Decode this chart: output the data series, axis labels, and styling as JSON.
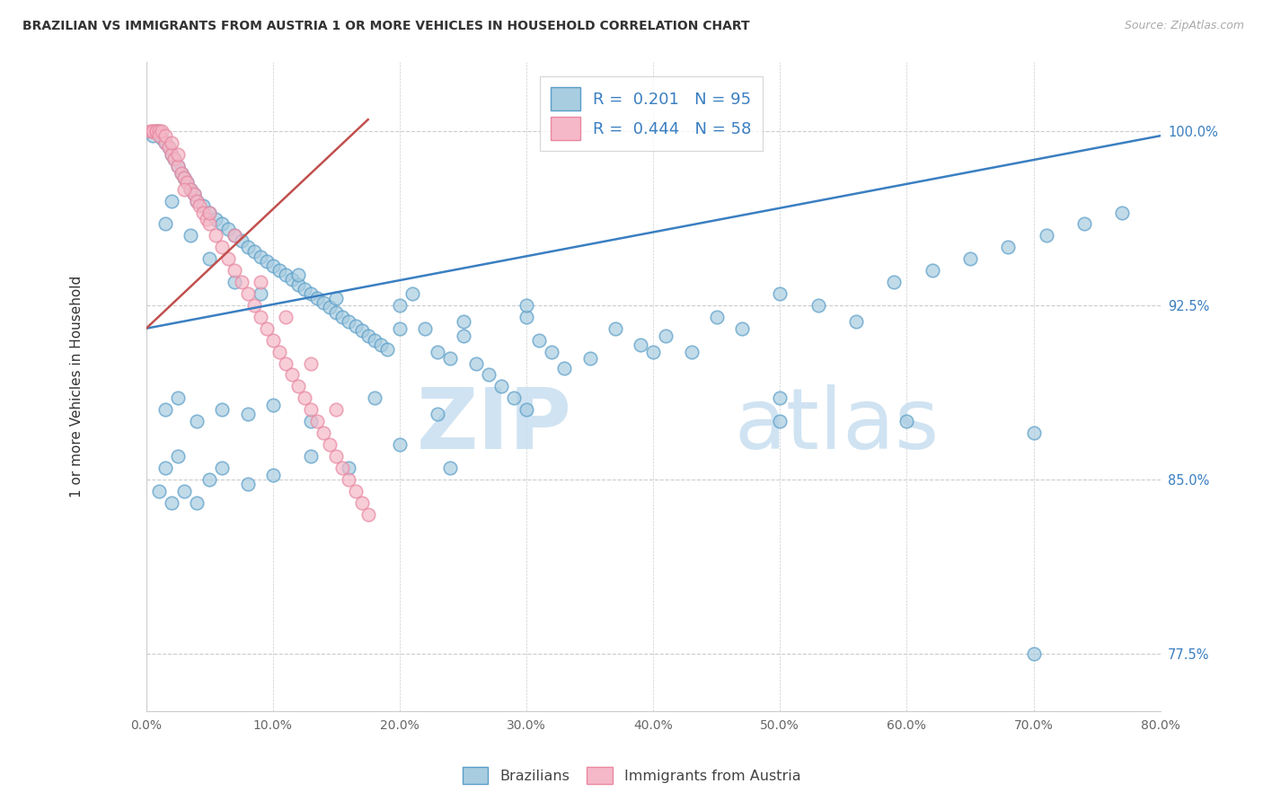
{
  "title": "BRAZILIAN VS IMMIGRANTS FROM AUSTRIA 1 OR MORE VEHICLES IN HOUSEHOLD CORRELATION CHART",
  "source": "Source: ZipAtlas.com",
  "ylabel": "1 or more Vehicles in Household",
  "xlim": [
    0.0,
    80.0
  ],
  "ylim": [
    75.0,
    103.0
  ],
  "yticks": [
    77.5,
    85.0,
    92.5,
    100.0
  ],
  "xticks": [
    0.0,
    10.0,
    20.0,
    30.0,
    40.0,
    50.0,
    60.0,
    70.0,
    80.0
  ],
  "watermark_zip": "ZIP",
  "watermark_atlas": "atlas",
  "legend_blue_r": "0.201",
  "legend_blue_n": "95",
  "legend_pink_r": "0.444",
  "legend_pink_n": "58",
  "legend_label_blue": "Brazilians",
  "legend_label_pink": "Immigrants from Austria",
  "blue_color": "#a8cce0",
  "pink_color": "#f5b8c8",
  "blue_edge_color": "#5a9ec8",
  "pink_edge_color": "#e888a0",
  "blue_line_color": "#3a7fc1",
  "pink_line_color": "#c0504d",
  "rn_value_color": "#3a7fc1",
  "blue_scatter_x": [
    0.5,
    0.8,
    1.0,
    1.2,
    1.5,
    1.8,
    2.0,
    2.2,
    2.5,
    2.8,
    3.0,
    3.2,
    3.5,
    3.8,
    4.0,
    4.5,
    5.0,
    5.5,
    6.0,
    6.5,
    7.0,
    7.5,
    8.0,
    8.5,
    9.0,
    9.5,
    10.0,
    10.5,
    11.0,
    11.5,
    12.0,
    12.5,
    13.0,
    13.5,
    14.0,
    14.5,
    15.0,
    15.5,
    16.0,
    16.5,
    17.0,
    17.5,
    18.0,
    18.5,
    19.0,
    20.0,
    21.0,
    22.0,
    23.0,
    24.0,
    25.0,
    26.0,
    27.0,
    28.0,
    29.0,
    30.0,
    31.0,
    32.0,
    33.0,
    35.0,
    37.0,
    39.0,
    41.0,
    43.0,
    45.0,
    47.0,
    50.0,
    53.0,
    56.0,
    59.0,
    62.0,
    65.0,
    68.0,
    71.0,
    74.0,
    77.0,
    1.5,
    2.0,
    3.5,
    5.0,
    7.0,
    9.0,
    12.0,
    15.0,
    20.0,
    25.0,
    30.0,
    40.0,
    50.0,
    60.0,
    70.0
  ],
  "blue_scatter_y": [
    99.8,
    100.0,
    100.0,
    99.7,
    99.5,
    99.3,
    99.0,
    98.8,
    98.5,
    98.2,
    98.0,
    97.8,
    97.5,
    97.3,
    97.0,
    96.8,
    96.5,
    96.2,
    96.0,
    95.8,
    95.5,
    95.3,
    95.0,
    94.8,
    94.6,
    94.4,
    94.2,
    94.0,
    93.8,
    93.6,
    93.4,
    93.2,
    93.0,
    92.8,
    92.6,
    92.4,
    92.2,
    92.0,
    91.8,
    91.6,
    91.4,
    91.2,
    91.0,
    90.8,
    90.6,
    92.5,
    93.0,
    91.5,
    90.5,
    90.2,
    91.8,
    90.0,
    89.5,
    89.0,
    88.5,
    92.0,
    91.0,
    90.5,
    89.8,
    90.2,
    91.5,
    90.8,
    91.2,
    90.5,
    92.0,
    91.5,
    93.0,
    92.5,
    91.8,
    93.5,
    94.0,
    94.5,
    95.0,
    95.5,
    96.0,
    96.5,
    96.0,
    97.0,
    95.5,
    94.5,
    93.5,
    93.0,
    93.8,
    92.8,
    91.5,
    91.2,
    92.5,
    90.5,
    88.5,
    87.5,
    77.5
  ],
  "blue_scatter_x2": [
    1.0,
    1.5,
    2.0,
    2.5,
    3.0,
    4.0,
    5.0,
    6.0,
    8.0,
    10.0,
    13.0,
    16.0,
    20.0,
    24.0
  ],
  "blue_scatter_y2": [
    84.5,
    85.5,
    84.0,
    86.0,
    84.5,
    84.0,
    85.0,
    85.5,
    84.8,
    85.2,
    86.0,
    85.5,
    86.5,
    85.5
  ],
  "blue_scatter_x3": [
    1.5,
    2.5,
    4.0,
    6.0,
    8.0,
    10.0,
    13.0,
    18.0,
    23.0,
    30.0,
    50.0,
    70.0
  ],
  "blue_scatter_y3": [
    88.0,
    88.5,
    87.5,
    88.0,
    87.8,
    88.2,
    87.5,
    88.5,
    87.8,
    88.0,
    87.5,
    87.0
  ],
  "pink_scatter_x": [
    0.3,
    0.5,
    0.5,
    0.8,
    0.8,
    1.0,
    1.0,
    1.2,
    1.5,
    1.5,
    1.8,
    2.0,
    2.0,
    2.2,
    2.5,
    2.5,
    2.8,
    3.0,
    3.2,
    3.5,
    3.8,
    4.0,
    4.2,
    4.5,
    4.8,
    5.0,
    5.5,
    6.0,
    6.5,
    7.0,
    7.5,
    8.0,
    8.5,
    9.0,
    9.5,
    10.0,
    10.5,
    11.0,
    11.5,
    12.0,
    12.5,
    13.0,
    13.5,
    14.0,
    14.5,
    15.0,
    15.5,
    16.0,
    16.5,
    17.0,
    17.5,
    3.0,
    5.0,
    7.0,
    9.0,
    11.0,
    13.0,
    15.0
  ],
  "pink_scatter_y": [
    100.0,
    100.0,
    100.0,
    100.0,
    100.0,
    100.0,
    99.8,
    100.0,
    99.5,
    99.8,
    99.3,
    99.0,
    99.5,
    98.8,
    98.5,
    99.0,
    98.2,
    98.0,
    97.8,
    97.5,
    97.3,
    97.0,
    96.8,
    96.5,
    96.2,
    96.0,
    95.5,
    95.0,
    94.5,
    94.0,
    93.5,
    93.0,
    92.5,
    92.0,
    91.5,
    91.0,
    90.5,
    90.0,
    89.5,
    89.0,
    88.5,
    88.0,
    87.5,
    87.0,
    86.5,
    86.0,
    85.5,
    85.0,
    84.5,
    84.0,
    83.5,
    97.5,
    96.5,
    95.5,
    93.5,
    92.0,
    90.0,
    88.0
  ],
  "blue_trend_x": [
    0.0,
    80.0
  ],
  "blue_trend_y": [
    91.5,
    99.8
  ],
  "pink_trend_x": [
    0.0,
    17.5
  ],
  "pink_trend_y": [
    91.5,
    100.5
  ],
  "grid_color": "#cccccc",
  "title_color": "#333333",
  "source_color": "#aaaaaa",
  "tick_color_x": "#666666",
  "tick_color_y": "#3a7fc1"
}
